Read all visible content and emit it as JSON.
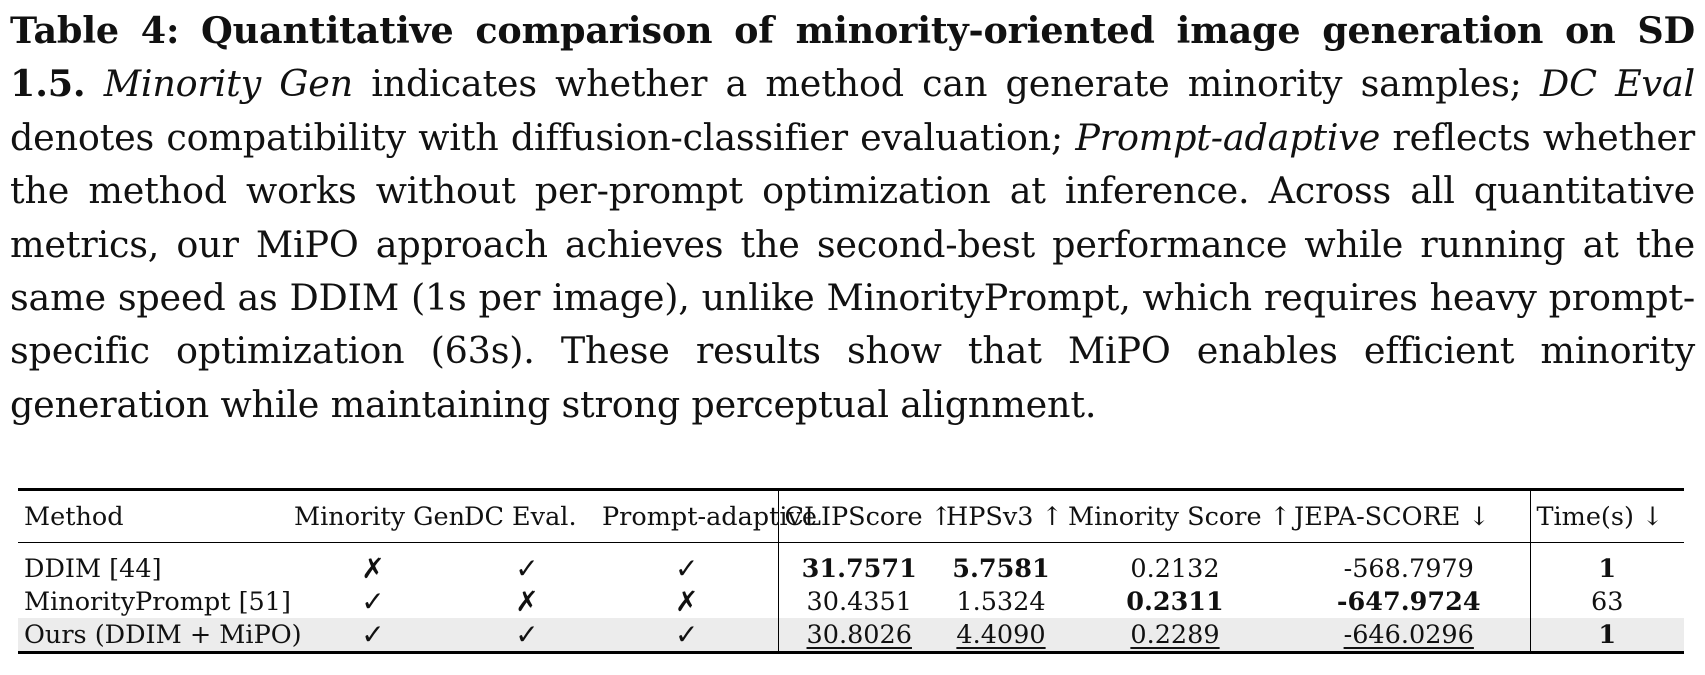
{
  "caption": {
    "label": "Table 4: Quantitative comparison of minority-oriented image generation on SD 1.5.",
    "t1_em": "Minority Gen",
    "t1": " indicates whether a method can generate minority samples; ",
    "t2_em": "DC Eval",
    "t2": " denotes compatibility with diffusion-classifier evaluation; ",
    "t3_em": "Prompt-adaptive",
    "t3": " reflects whether the method works without per-prompt optimization at inference. Across all quantitative metrics, our MiPO approach achieves the second-best performance while running at the same speed as DDIM (1s per image), unlike MinorityPrompt, which requires heavy prompt-specific optimization (63s). These results show that MiPO enables efficient minority generation while maintaining strong perceptual alignment."
  },
  "table": {
    "headers": {
      "method": "Method",
      "minority_gen": "Minority Gen.",
      "dc_eval": "DC Eval.",
      "prompt_adaptive": "Prompt-adaptive",
      "clipscore": "CLIPScore ↑",
      "hpsv3": "HPSv3 ↑",
      "minority_score": "Minority Score ↑",
      "jepa_score": "JEPA-SCORE ↓",
      "time": "Time(s) ↓"
    },
    "rows": [
      {
        "method": "DDIM [44]",
        "minority_gen": "✗",
        "dc_eval": "✓",
        "prompt_adaptive": "✓",
        "clipscore": "31.7571",
        "hpsv3": "5.7581",
        "minority_score": "0.2132",
        "jepa_score": "-568.7979",
        "time": "1"
      },
      {
        "method": "MinorityPrompt [51]",
        "minority_gen": "✓",
        "dc_eval": "✗",
        "prompt_adaptive": "✗",
        "clipscore": "30.4351",
        "hpsv3": "1.5324",
        "minority_score": "0.2311",
        "jepa_score": "-647.9724",
        "time": "63"
      },
      {
        "method": "Ours (DDIM + MiPO)",
        "minority_gen": "✓",
        "dc_eval": "✓",
        "prompt_adaptive": "✓",
        "clipscore": "30.8026",
        "hpsv3": "4.4090",
        "minority_score": "0.2289",
        "jepa_score": "-646.0296",
        "time": "1"
      }
    ]
  }
}
